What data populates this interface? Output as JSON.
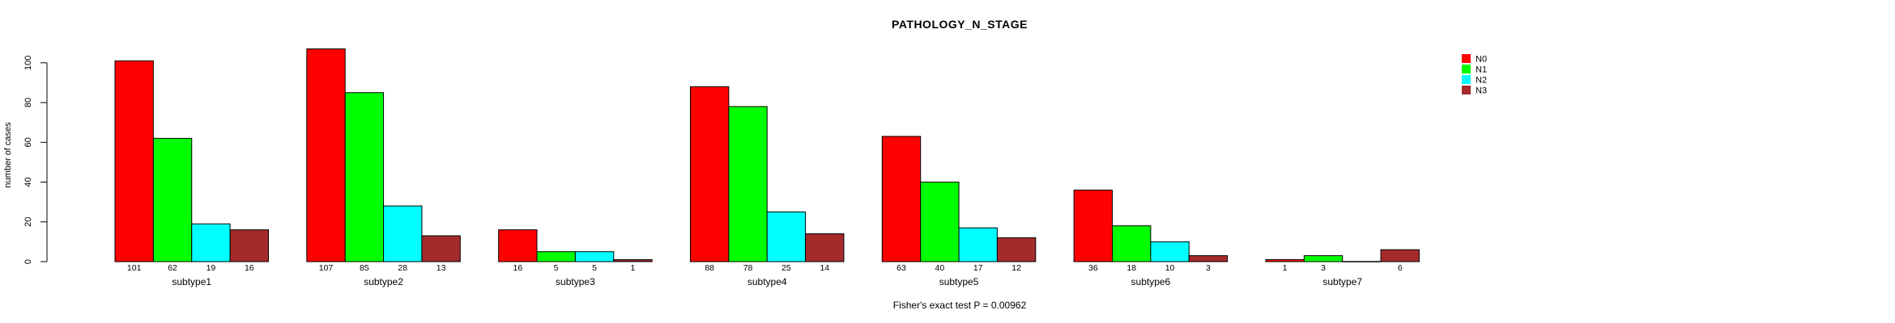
{
  "chart_data": {
    "type": "bar",
    "title": "PATHOLOGY_N_STAGE",
    "ylabel": "number of cases",
    "xlabel": "",
    "annotation": "Fisher's exact test P = 0.00962",
    "categories": [
      "subtype1",
      "subtype2",
      "subtype3",
      "subtype4",
      "subtype5",
      "subtype6",
      "subtype7"
    ],
    "series": [
      {
        "name": "N0",
        "color": "#ff0000",
        "values": [
          101,
          107,
          16,
          88,
          63,
          36,
          1
        ]
      },
      {
        "name": "N1",
        "color": "#00ff00",
        "values": [
          62,
          85,
          5,
          78,
          40,
          18,
          3
        ]
      },
      {
        "name": "N2",
        "color": "#00ffff",
        "values": [
          19,
          28,
          5,
          25,
          17,
          10,
          0
        ]
      },
      {
        "name": "N3",
        "color": "#a52a2a",
        "values": [
          16,
          13,
          1,
          14,
          12,
          3,
          6
        ]
      }
    ],
    "yticks": [
      0,
      20,
      40,
      60,
      80,
      100
    ],
    "ylim": [
      0,
      110
    ],
    "grid": false,
    "legend_position": "right",
    "bar_value_labels": true,
    "zero_bars_drawn_as_flat_line": true,
    "axis_color": "#000000",
    "bar_border_color": "#000000",
    "background_color": "#ffffff"
  }
}
